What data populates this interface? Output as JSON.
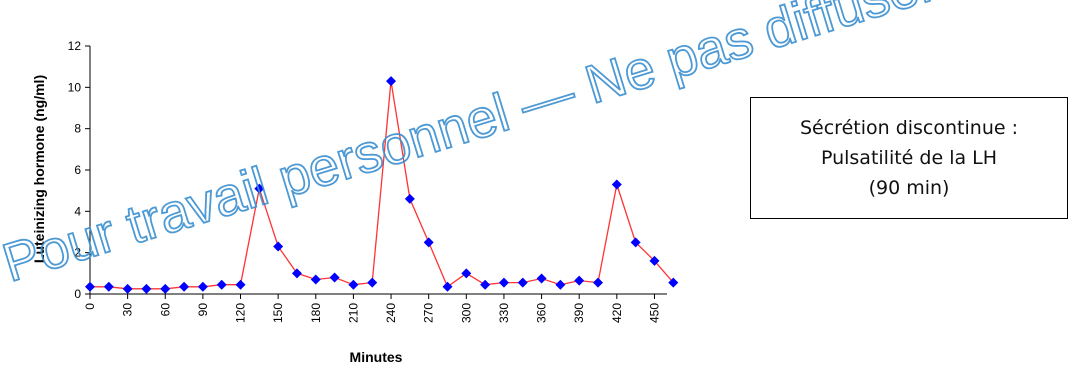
{
  "chart_data": {
    "type": "line",
    "ylabel": "Luteinizing hormone (ng/ml)",
    "xlabel": "Minutes",
    "ylim": [
      0,
      12
    ],
    "yticks": [
      0,
      2,
      4,
      6,
      8,
      10,
      12
    ],
    "xlim": [
      0,
      460
    ],
    "xticks": [
      0,
      30,
      60,
      90,
      120,
      150,
      180,
      210,
      240,
      270,
      300,
      330,
      360,
      390,
      420,
      450
    ],
    "grid": false,
    "x": [
      0,
      15,
      30,
      45,
      60,
      75,
      90,
      105,
      120,
      135,
      150,
      165,
      180,
      195,
      210,
      225,
      240,
      255,
      270,
      285,
      300,
      315,
      330,
      345,
      360,
      375,
      390,
      405,
      420,
      435,
      450,
      465
    ],
    "series": [
      {
        "values": [
          0.35,
          0.35,
          0.25,
          0.25,
          0.25,
          0.35,
          0.35,
          0.45,
          0.45,
          5.1,
          2.3,
          1.0,
          0.7,
          0.8,
          0.45,
          0.55,
          10.3,
          4.6,
          2.5,
          0.35,
          1.0,
          0.45,
          0.55,
          0.55,
          0.75,
          0.45,
          0.65,
          0.55,
          5.3,
          2.5,
          1.6,
          0.55
        ],
        "line_color": "#ff3333",
        "marker_color": "#0000ff"
      }
    ]
  },
  "watermark": {
    "text": "Pour travail personnel — Ne pas diffuser",
    "color": "#3a8fd0"
  },
  "note": {
    "line1": "Sécrétion discontinue :",
    "line2": "Pulsatilité de la LH",
    "line3": "(90 min)"
  }
}
